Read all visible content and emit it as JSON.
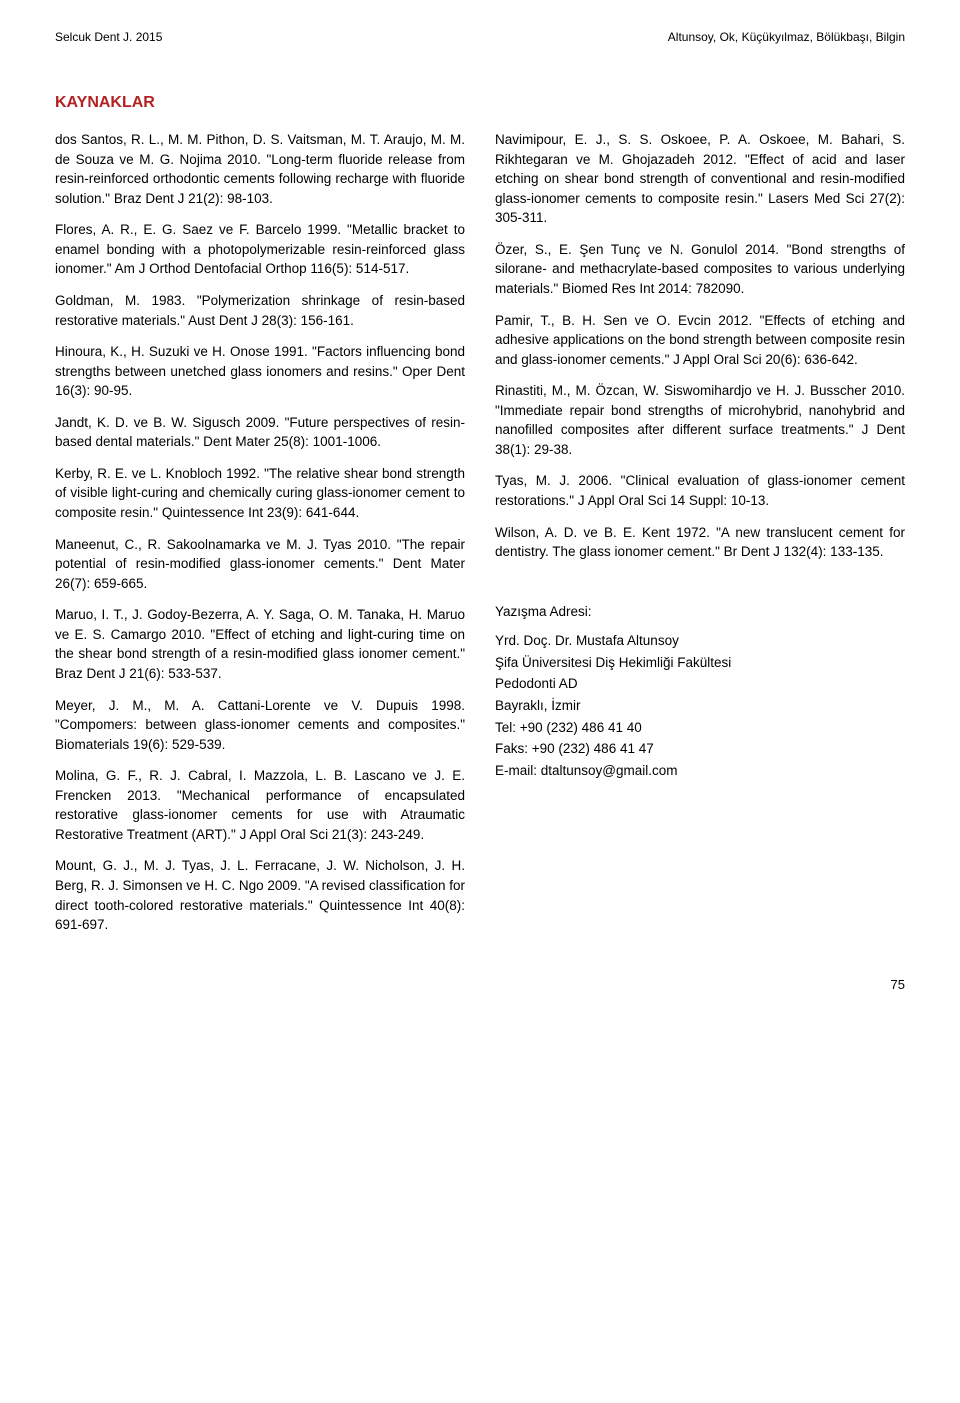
{
  "header": {
    "left": "Selcuk Dent J. 2015",
    "right": "Altunsoy, Ok, Küçükyılmaz, Bölükbaşı, Bilgin"
  },
  "section_title": "KAYNAKLAR",
  "left_column": [
    "dos Santos, R. L., M. M. Pithon, D. S. Vaitsman, M. T. Araujo, M. M. de Souza ve M. G. Nojima 2010. \"Long-term fluoride release from resin-reinforced orthodontic cements following recharge with fluoride solution.\" Braz Dent J 21(2): 98-103.",
    "Flores, A. R., E. G. Saez ve F. Barcelo 1999. \"Metallic bracket to enamel bonding with a photopolymerizable resin-reinforced glass ionomer.\" Am J Orthod Dentofacial Orthop 116(5): 514-517.",
    "Goldman, M. 1983. \"Polymerization shrinkage of resin-based restorative materials.\" Aust Dent J 28(3): 156-161.",
    "Hinoura, K., H. Suzuki ve H. Onose 1991. \"Factors influencing bond strengths between unetched glass ionomers and resins.\" Oper Dent 16(3): 90-95.",
    "Jandt, K. D. ve B. W. Sigusch 2009. \"Future perspectives of resin-based dental materials.\" Dent Mater 25(8): 1001-1006.",
    "Kerby, R. E. ve L. Knobloch 1992. \"The relative shear bond strength of visible light-curing and chemically curing glass-ionomer cement to composite resin.\" Quintessence Int 23(9): 641-644.",
    "Maneenut, C., R. Sakoolnamarka ve M. J. Tyas 2010. \"The repair potential of resin-modified glass-ionomer cements.\" Dent Mater 26(7): 659-665.",
    "Maruo, I. T., J. Godoy-Bezerra, A. Y. Saga, O. M. Tanaka, H. Maruo ve E. S. Camargo 2010. \"Effect of etching and light-curing time on the shear bond strength of a resin-modified glass ionomer cement.\" Braz Dent J 21(6): 533-537.",
    "Meyer, J. M., M. A. Cattani-Lorente ve V. Dupuis 1998. \"Compomers: between glass-ionomer cements and composites.\" Biomaterials 19(6): 529-539.",
    "Molina, G. F., R. J. Cabral, I. Mazzola, L. B. Lascano ve J. E. Frencken 2013. \"Mechanical performance of encapsulated restorative glass-ionomer cements for use with Atraumatic Restorative Treatment (ART).\" J Appl Oral Sci 21(3): 243-249.",
    "Mount, G. J., M. J. Tyas, J. L. Ferracane, J. W. Nicholson, J. H. Berg, R. J. Simonsen ve H. C. Ngo 2009. \"A revised classification for direct tooth-colored restorative materials.\" Quintessence Int 40(8): 691-697."
  ],
  "right_column": [
    "Navimipour, E. J., S. S. Oskoee, P. A. Oskoee, M. Bahari, S. Rikhtegaran ve M. Ghojazadeh 2012. \"Effect of acid and laser etching on shear bond strength of conventional and resin-modified glass-ionomer cements to composite resin.\" Lasers Med Sci 27(2): 305-311.",
    "Özer, S., E. Şen Tunç ve N. Gonulol 2014. \"Bond strengths of silorane- and methacrylate-based composites to various underlying materials.\" Biomed Res Int 2014: 782090.",
    "Pamir, T., B. H. Sen ve O. Evcin 2012. \"Effects of etching and adhesive applications on the bond strength between composite resin and glass-ionomer cements.\" J Appl Oral Sci 20(6): 636-642.",
    "Rinastiti, M., M. Özcan, W. Siswomihardjo ve H. J. Busscher 2010. \"Immediate repair bond strengths of microhybrid, nanohybrid and nanofilled composites after different surface treatments.\" J Dent 38(1): 29-38.",
    "Tyas, M. J. 2006. \"Clinical evaluation of glass-ionomer cement restorations.\" J Appl Oral Sci 14 Suppl: 10-13.",
    "Wilson, A. D. ve B. E. Kent 1972. \"A new translucent cement for dentistry. The glass ionomer cement.\" Br Dent J 132(4): 133-135."
  ],
  "correspondence": {
    "title": "Yazışma Adresi:",
    "lines": [
      "Yrd. Doç. Dr. Mustafa Altunsoy",
      "Şifa Üniversitesi Diş Hekimliği Fakültesi",
      "Pedodonti AD",
      "Bayraklı, İzmir",
      "Tel: +90 (232) 486 41 40",
      "Faks: +90 (232) 486 41 47",
      "E-mail: dtaltunsoy@gmail.com"
    ]
  },
  "page_number": "75"
}
